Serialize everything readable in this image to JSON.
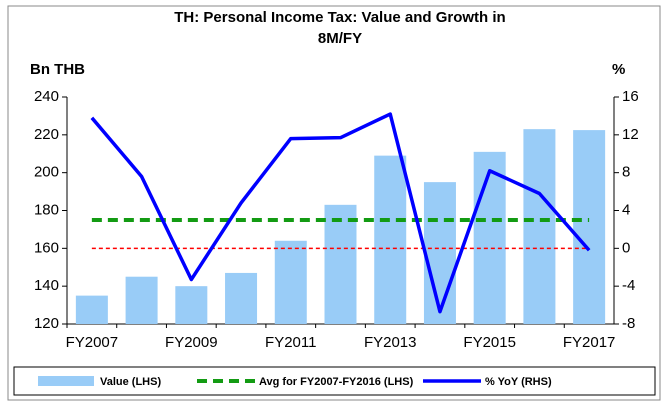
{
  "chart_data": {
    "type": "bar_line",
    "title": "TH: Personal Income Tax: Value and Growth in 8M/FY",
    "y_label": "Bn THB",
    "y2_label": "%",
    "categories": [
      "FY2007",
      null,
      "FY2009",
      null,
      "FY2011",
      null,
      "FY2013",
      null,
      "FY2015",
      null,
      "FY2017"
    ],
    "series": [
      {
        "name": "Value (LHS)",
        "type": "bar",
        "color": "#99ccf7",
        "values": [
          135,
          145,
          140,
          147,
          164,
          183,
          209,
          195,
          211,
          223,
          222.5
        ]
      },
      {
        "name": "Avg for FY2007-FY2016 (LHS)",
        "type": "hline",
        "color": "#139b13",
        "value": 175
      },
      {
        "name": "% YoY (RHS)",
        "type": "line",
        "axis": "y2",
        "color": "#0000ff",
        "values": [
          13.8,
          7.6,
          -3.3,
          4.8,
          11.6,
          11.7,
          14.2,
          -6.7,
          8.2,
          5.8,
          -0.2
        ]
      }
    ],
    "reference_line": {
      "value": 0,
      "axis": "y2",
      "color": "#ff0000"
    },
    "ylim": [
      120,
      240
    ],
    "yticks": [
      120,
      140,
      160,
      180,
      200,
      220,
      240
    ],
    "y2lim": [
      -8,
      16
    ],
    "y2ticks": [
      -8,
      -4,
      0,
      4,
      8,
      12,
      16
    ],
    "legend": "bottom",
    "grid": false
  }
}
